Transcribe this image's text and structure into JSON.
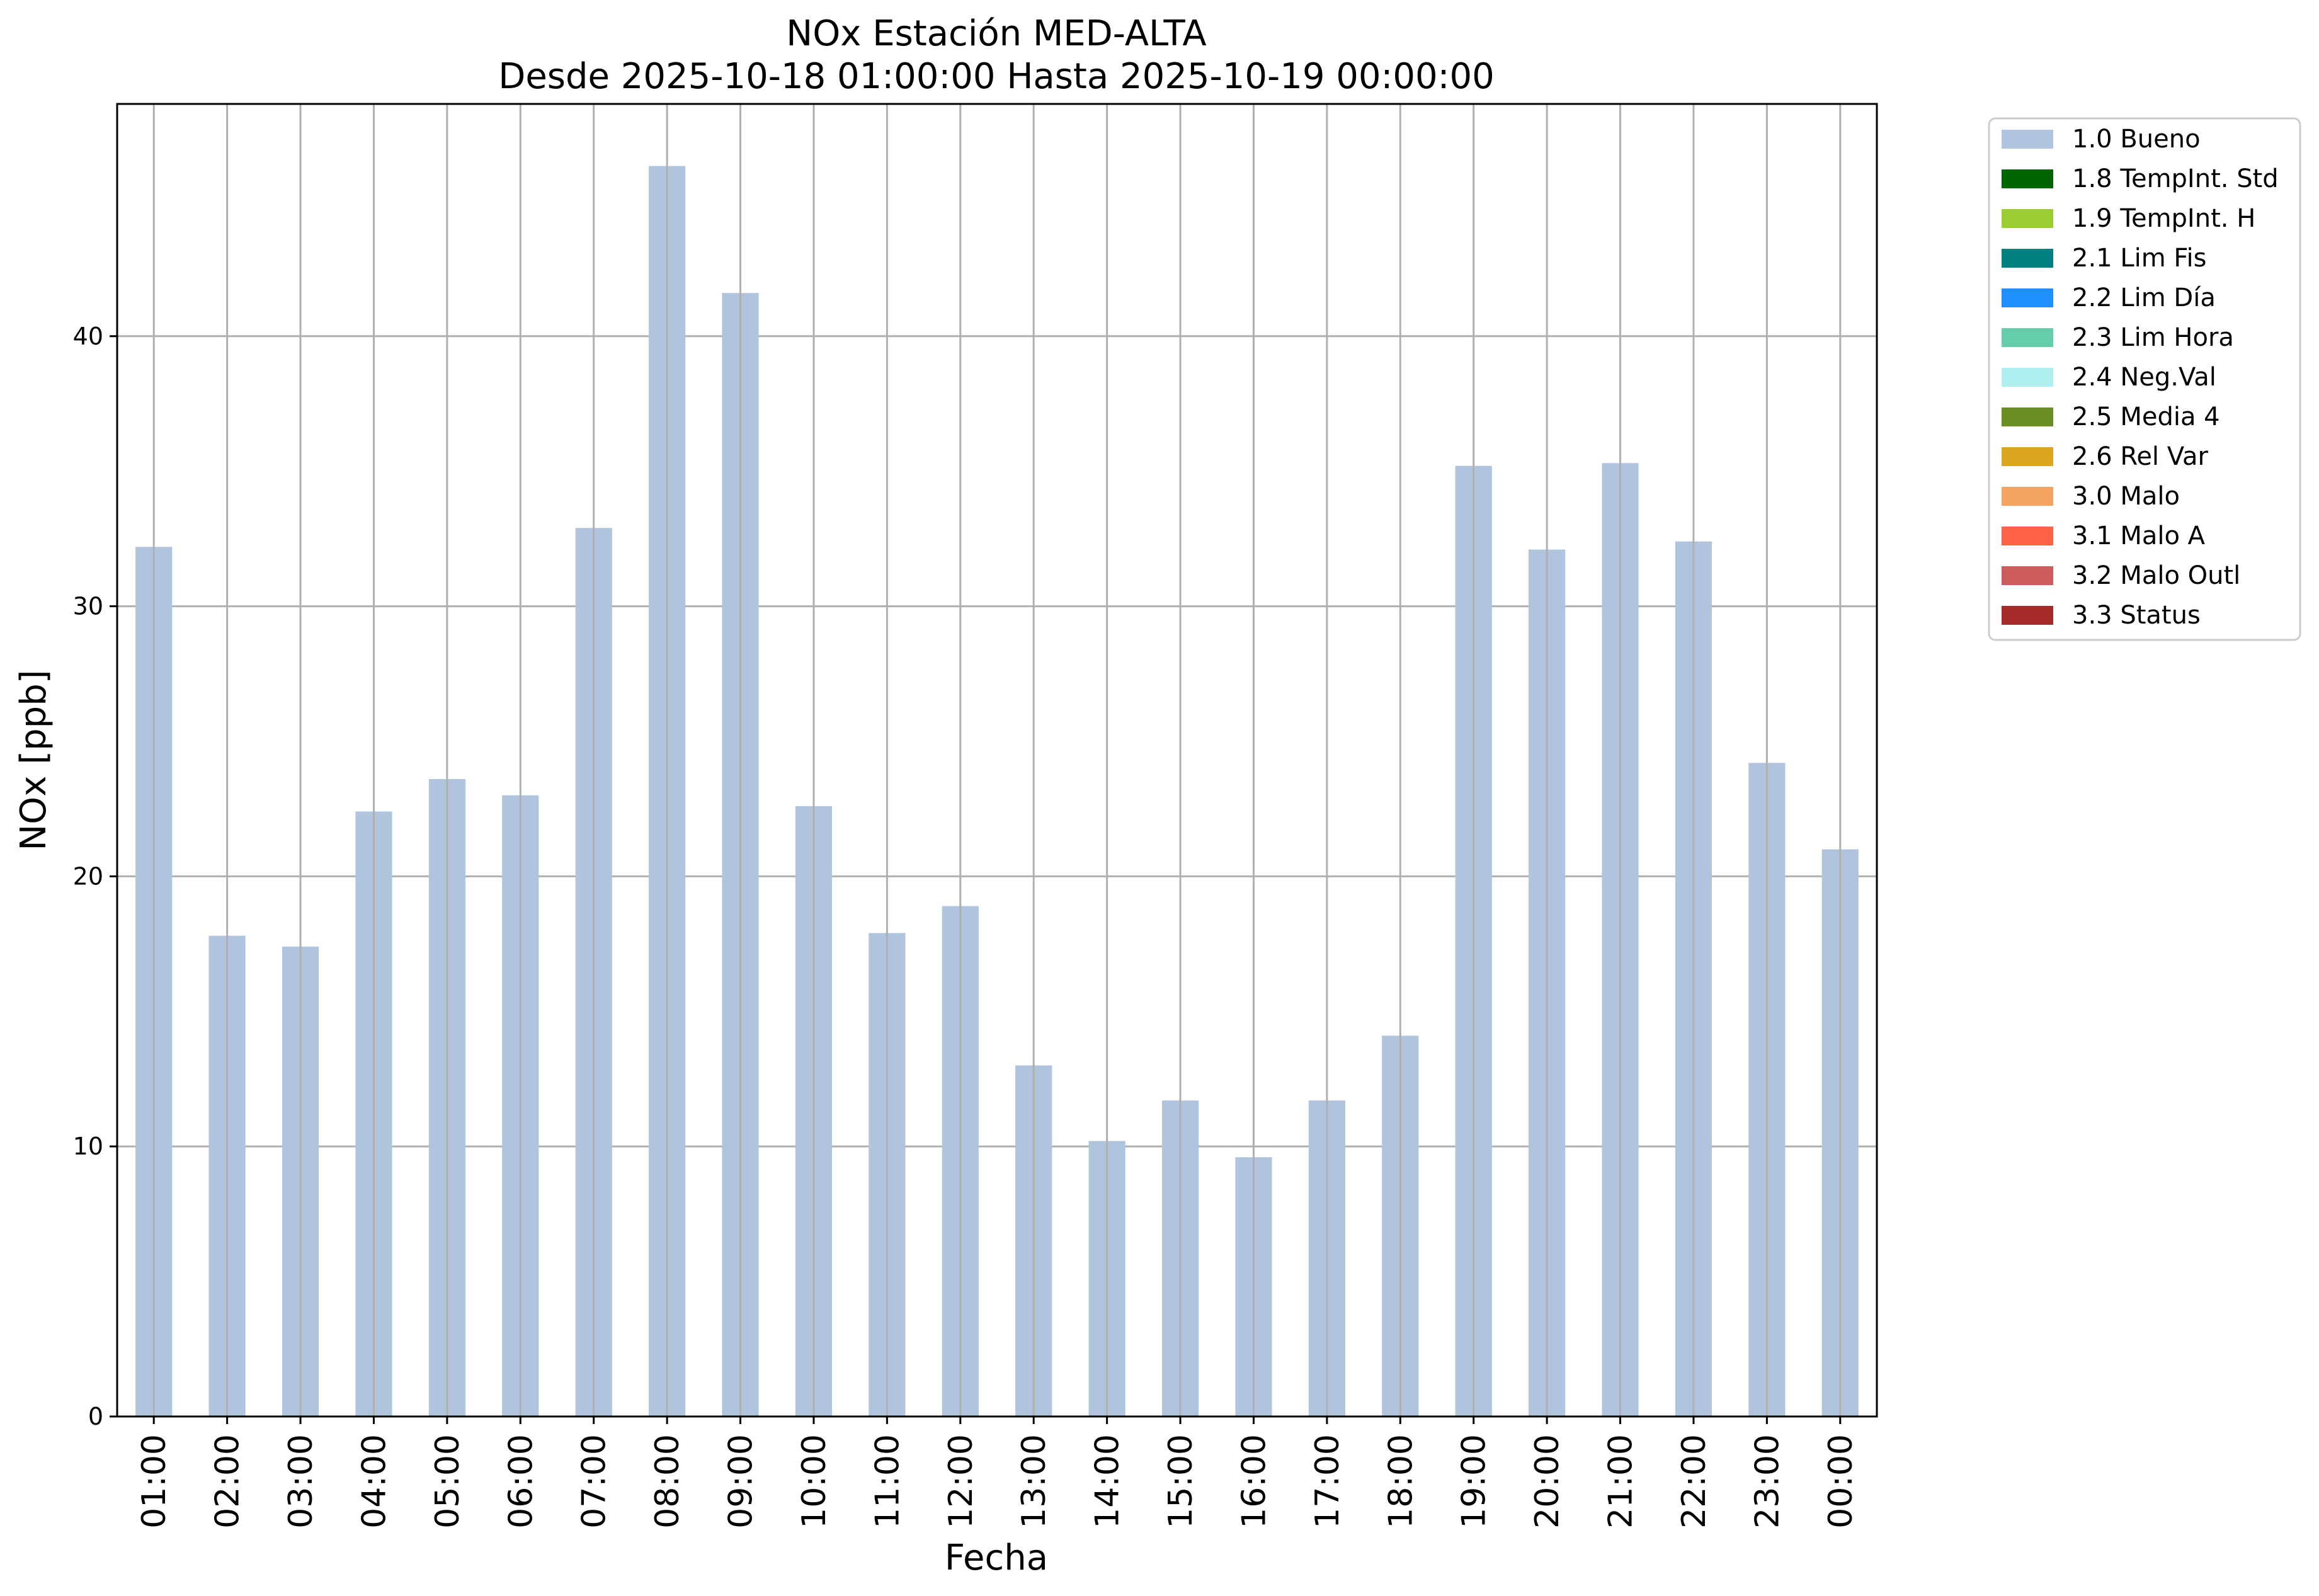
{
  "chart_data": {
    "type": "bar",
    "title": "NOx Estación MED-ALTA",
    "subtitle": "Desde 2025-10-18 01:00:00 Hasta 2025-10-19 00:00:00",
    "xlabel": "Fecha",
    "ylabel": "NOx [ppb]",
    "ylim": [
      0,
      48.6
    ],
    "yticks": [
      0,
      10,
      20,
      30,
      40
    ],
    "grid": true,
    "legend_position": "outside-right",
    "categories": [
      "01:00",
      "02:00",
      "03:00",
      "04:00",
      "05:00",
      "06:00",
      "07:00",
      "08:00",
      "09:00",
      "10:00",
      "11:00",
      "12:00",
      "13:00",
      "14:00",
      "15:00",
      "16:00",
      "17:00",
      "18:00",
      "19:00",
      "20:00",
      "21:00",
      "22:00",
      "23:00",
      "00:00"
    ],
    "series": [
      {
        "name": "1.0 Bueno",
        "color": "#b0c4de",
        "values": [
          32.2,
          17.8,
          17.4,
          22.4,
          23.6,
          23.0,
          32.9,
          46.3,
          41.6,
          22.6,
          17.9,
          18.9,
          13.0,
          10.2,
          11.7,
          9.6,
          11.7,
          14.1,
          35.2,
          32.1,
          35.3,
          32.4,
          24.2,
          21.0
        ]
      }
    ],
    "legend": [
      {
        "label": "1.0 Bueno",
        "color": "#b0c4de"
      },
      {
        "label": "1.8 TempInt. Std",
        "color": "#006400"
      },
      {
        "label": "1.9 TempInt. H",
        "color": "#9acd32"
      },
      {
        "label": "2.1 Lim Fis",
        "color": "#008080"
      },
      {
        "label": "2.2 Lim Día",
        "color": "#1e90ff"
      },
      {
        "label": "2.3 Lim Hora",
        "color": "#66cdaa"
      },
      {
        "label": "2.4 Neg.Val",
        "color": "#afeeee"
      },
      {
        "label": "2.5 Media 4",
        "color": "#6b8e23"
      },
      {
        "label": "2.6 Rel Var",
        "color": "#daa520"
      },
      {
        "label": "3.0 Malo",
        "color": "#f4a460"
      },
      {
        "label": "3.1 Malo A",
        "color": "#ff6347"
      },
      {
        "label": "3.2 Malo Outl",
        "color": "#cd5c5c"
      },
      {
        "label": "3.3 Status",
        "color": "#a52a2a"
      }
    ]
  }
}
